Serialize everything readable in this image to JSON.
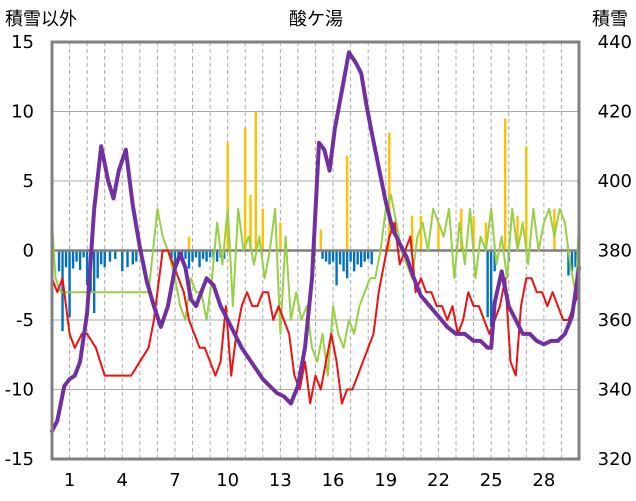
{
  "chart_data": {
    "type": "line",
    "title": "酸ケ湯",
    "left_axis_label": "積雪以外",
    "right_axis_label": "積雪",
    "x_ticks": [
      "1",
      "4",
      "7",
      "10",
      "13",
      "16",
      "19",
      "22",
      "25",
      "28"
    ],
    "x_tick_days": [
      1,
      4,
      7,
      10,
      13,
      16,
      19,
      22,
      25,
      28
    ],
    "xlim": [
      0,
      30
    ],
    "left_axis": {
      "min": -15,
      "max": 15,
      "step": 5,
      "ticks": [
        "15",
        "10",
        "5",
        "0",
        "-5",
        "-10",
        "-15"
      ]
    },
    "right_axis": {
      "min": 320,
      "max": 440,
      "step": 20,
      "ticks": [
        "440",
        "420",
        "400",
        "380",
        "360",
        "340",
        "320"
      ]
    },
    "colors": {
      "temp_max": "#97d045",
      "temp_min": "#ee1111",
      "snow_depth": "#7030a0",
      "snowfall_bars": "#0070c0",
      "precip_bars": "#ffc000",
      "zero_line": "#7f7f7f",
      "frame": "#808080",
      "grid": "#aaaaaa"
    },
    "series": [
      {
        "name": "snow_depth",
        "axis": "right",
        "x": [
          0.0,
          0.3,
          0.7,
          1.0,
          1.3,
          1.6,
          2.0,
          2.4,
          2.8,
          3.2,
          3.5,
          3.8,
          4.2,
          4.6,
          5.0,
          5.4,
          5.8,
          6.2,
          6.6,
          7.0,
          7.3,
          7.6,
          7.9,
          8.2,
          8.5,
          8.8,
          9.2,
          9.6,
          10.0,
          10.4,
          10.8,
          11.2,
          11.6,
          12.0,
          12.4,
          12.8,
          13.2,
          13.6,
          14.0,
          14.4,
          14.8,
          15.2,
          15.5,
          15.8,
          16.1,
          16.5,
          16.9,
          17.3,
          17.6,
          17.9,
          18.2,
          18.6,
          19.0,
          19.4,
          19.8,
          20.2,
          20.6,
          21.0,
          21.5,
          22.0,
          22.5,
          23.0,
          23.5,
          24.0,
          24.4,
          24.8,
          25.0,
          25.2,
          25.6,
          26.0,
          26.4,
          26.8,
          27.2,
          27.6,
          28.0,
          28.4,
          28.8,
          29.2,
          29.6,
          30.0
        ],
        "values": [
          328,
          331,
          341,
          343,
          344,
          348,
          362,
          392,
          410,
          400,
          395,
          403,
          409,
          393,
          381,
          371,
          364,
          358,
          364,
          375,
          379,
          375,
          366,
          364,
          368,
          372,
          370,
          364,
          360,
          356,
          352,
          349,
          346,
          343,
          341,
          339,
          338,
          336,
          341,
          352,
          372,
          411,
          409,
          403,
          415,
          426,
          437,
          434,
          431,
          422,
          414,
          404,
          394,
          386,
          382,
          378,
          372,
          367,
          364,
          361,
          358,
          356,
          356,
          354,
          354,
          352,
          352,
          365,
          374,
          364,
          360,
          356,
          356,
          354,
          353,
          354,
          354,
          356,
          361,
          375
        ]
      },
      {
        "name": "temp_max",
        "axis": "left",
        "x": [
          0.0,
          0.2,
          0.5,
          1.0,
          1.5,
          2.0,
          2.5,
          3.0,
          3.5,
          4.0,
          4.5,
          5.0,
          5.5,
          6.0,
          6.3,
          6.6,
          7.0,
          7.3,
          7.6,
          7.9,
          8.2,
          8.5,
          8.8,
          9.1,
          9.4,
          9.7,
          10.0,
          10.3,
          10.6,
          10.9,
          11.2,
          11.5,
          11.8,
          12.1,
          12.4,
          12.7,
          13.0,
          13.3,
          13.6,
          13.9,
          14.2,
          14.5,
          14.8,
          15.1,
          15.4,
          15.7,
          16.0,
          16.3,
          16.6,
          16.9,
          17.2,
          17.5,
          17.8,
          18.1,
          18.4,
          18.7,
          19.0,
          19.3,
          19.6,
          19.9,
          20.2,
          20.5,
          20.8,
          21.1,
          21.4,
          21.7,
          22.0,
          22.3,
          22.6,
          22.9,
          23.2,
          23.5,
          23.8,
          24.1,
          24.4,
          24.7,
          25.0,
          25.3,
          25.6,
          25.9,
          26.2,
          26.5,
          26.8,
          27.1,
          27.4,
          27.7,
          28.0,
          28.3,
          28.6,
          28.9,
          29.2,
          29.5,
          29.8,
          30.0
        ],
        "values": [
          2,
          -2,
          -3,
          -3,
          -3,
          -3,
          -3,
          -3,
          -3,
          -3,
          -3,
          -3,
          -3,
          3,
          1,
          0,
          -2,
          -4,
          -5,
          -2,
          -3,
          -3,
          -5,
          -2,
          2,
          -1,
          3,
          -4,
          3,
          0,
          1,
          -1,
          1,
          -2,
          0,
          3,
          -6,
          1,
          -5,
          -3,
          -5,
          -4,
          -7,
          -8,
          -6,
          -9,
          -4,
          -6,
          -7,
          -5,
          -6,
          -4,
          -3,
          -2,
          -2,
          0,
          3,
          4,
          2,
          0,
          -1,
          -2,
          1,
          2,
          0,
          3,
          2,
          1,
          3,
          -2,
          2,
          -1,
          3,
          -2,
          1,
          0,
          3,
          -1,
          1,
          -2,
          3,
          0,
          2,
          -1,
          3,
          0,
          2,
          3,
          1,
          3,
          2,
          -1,
          -3,
          2
        ]
      },
      {
        "name": "temp_min",
        "axis": "left",
        "x": [
          0.0,
          0.3,
          0.6,
          1.0,
          1.3,
          1.7,
          2.0,
          2.5,
          3.0,
          3.5,
          4.0,
          4.5,
          5.0,
          5.5,
          5.8,
          6.0,
          6.3,
          6.6,
          6.9,
          7.2,
          7.5,
          7.8,
          8.1,
          8.4,
          8.7,
          9.0,
          9.3,
          9.6,
          9.9,
          10.2,
          10.5,
          10.8,
          11.1,
          11.4,
          11.7,
          12.0,
          12.3,
          12.6,
          12.9,
          13.2,
          13.5,
          13.8,
          14.1,
          14.4,
          14.7,
          15.0,
          15.3,
          15.6,
          15.9,
          16.2,
          16.5,
          16.8,
          17.1,
          17.4,
          17.7,
          18.0,
          18.3,
          18.6,
          18.9,
          19.2,
          19.5,
          19.8,
          20.1,
          20.4,
          20.7,
          21.0,
          21.3,
          21.6,
          21.9,
          22.2,
          22.5,
          22.8,
          23.1,
          23.4,
          23.7,
          24.0,
          24.3,
          24.6,
          24.9,
          25.2,
          25.5,
          25.8,
          26.1,
          26.4,
          26.7,
          27.0,
          27.3,
          27.6,
          27.9,
          28.2,
          28.5,
          28.8,
          29.1,
          29.4,
          29.7,
          30.0
        ],
        "values": [
          -2,
          -3,
          -2,
          -6,
          -7,
          -6,
          -6,
          -7,
          -9,
          -9,
          -9,
          -9,
          -8,
          -7,
          -5,
          -3,
          0,
          0,
          -1,
          -2,
          -3,
          -5,
          -6,
          -7,
          -7,
          -8,
          -9,
          -8,
          -4,
          -9,
          -6,
          -4,
          -3,
          -4,
          -4,
          -3,
          -3,
          -5,
          -4,
          -5,
          -6,
          -9,
          -10,
          -8,
          -11,
          -9,
          -10,
          -8,
          -6,
          -8,
          -11,
          -10,
          -10,
          -9,
          -8,
          -7,
          -6,
          -3,
          -1,
          1,
          2,
          -1,
          0,
          1,
          -3,
          -2,
          -3,
          -3,
          -4,
          -4,
          -5,
          -4,
          -6,
          -5,
          -3,
          -4,
          -4,
          -5,
          -6,
          -5,
          -4,
          -2,
          -8,
          -9,
          -4,
          -2,
          -2,
          -3,
          -3,
          -4,
          -3,
          -4,
          -5,
          -5,
          -4,
          -3
        ]
      }
    ],
    "bar_series": [
      {
        "name": "snowfall",
        "axis": "left",
        "x": [
          0.4,
          0.6,
          0.8,
          1.0,
          1.2,
          1.4,
          1.6,
          1.8,
          2.0,
          2.2,
          2.4,
          2.6,
          2.8,
          3.0,
          3.3,
          3.6,
          4.0,
          4.3,
          4.6,
          4.8,
          6.8,
          7.0,
          7.2,
          7.4,
          7.6,
          7.8,
          8.0,
          8.2,
          8.4,
          8.6,
          8.8,
          9.0,
          9.2,
          9.4,
          9.6,
          9.8,
          15.4,
          15.6,
          15.8,
          16.0,
          16.2,
          16.4,
          16.6,
          16.8,
          17.0,
          17.2,
          17.4,
          17.6,
          17.8,
          18.0,
          18.2,
          24.8,
          25.0,
          25.2,
          26.0,
          29.4,
          29.6,
          29.8
        ],
        "values": [
          -1.5,
          -5.8,
          -1.2,
          -4.8,
          -1.3,
          -0.8,
          -1.4,
          -0.5,
          -2.5,
          -3.0,
          -4.5,
          -2.0,
          -1.0,
          -1.2,
          -0.8,
          -0.6,
          -1.5,
          -1.2,
          -1.0,
          -0.8,
          -0.6,
          -1.2,
          -0.8,
          -0.5,
          -0.6,
          -1.3,
          -0.8,
          -0.5,
          -1.2,
          -0.6,
          -0.8,
          -0.5,
          -0.6,
          -0.8,
          -0.5,
          -0.6,
          -0.6,
          -0.8,
          -1.0,
          -0.8,
          -2.5,
          -1.0,
          -1.5,
          -2.0,
          -0.8,
          -1.5,
          -1.0,
          -1.2,
          -0.8,
          -0.6,
          -1.0,
          -4.8,
          -5.5,
          -1.5,
          -0.8,
          -1.8,
          -1.5,
          -1.2
        ]
      },
      {
        "name": "precipitation",
        "axis": "left",
        "x": [
          7.8,
          10.0,
          11.0,
          11.3,
          11.6,
          12.0,
          13.0,
          15.3,
          16.8,
          19.2,
          20.5,
          21.0,
          22.0,
          23.3,
          24.0,
          24.7,
          25.8,
          26.5,
          27.0,
          28.6
        ],
        "values": [
          1.0,
          7.8,
          8.8,
          4.0,
          10.0,
          3.0,
          2.0,
          1.5,
          6.8,
          8.5,
          2.5,
          2.5,
          2.0,
          3.0,
          2.5,
          2.0,
          9.5,
          2.5,
          7.5,
          3.0
        ]
      }
    ]
  }
}
